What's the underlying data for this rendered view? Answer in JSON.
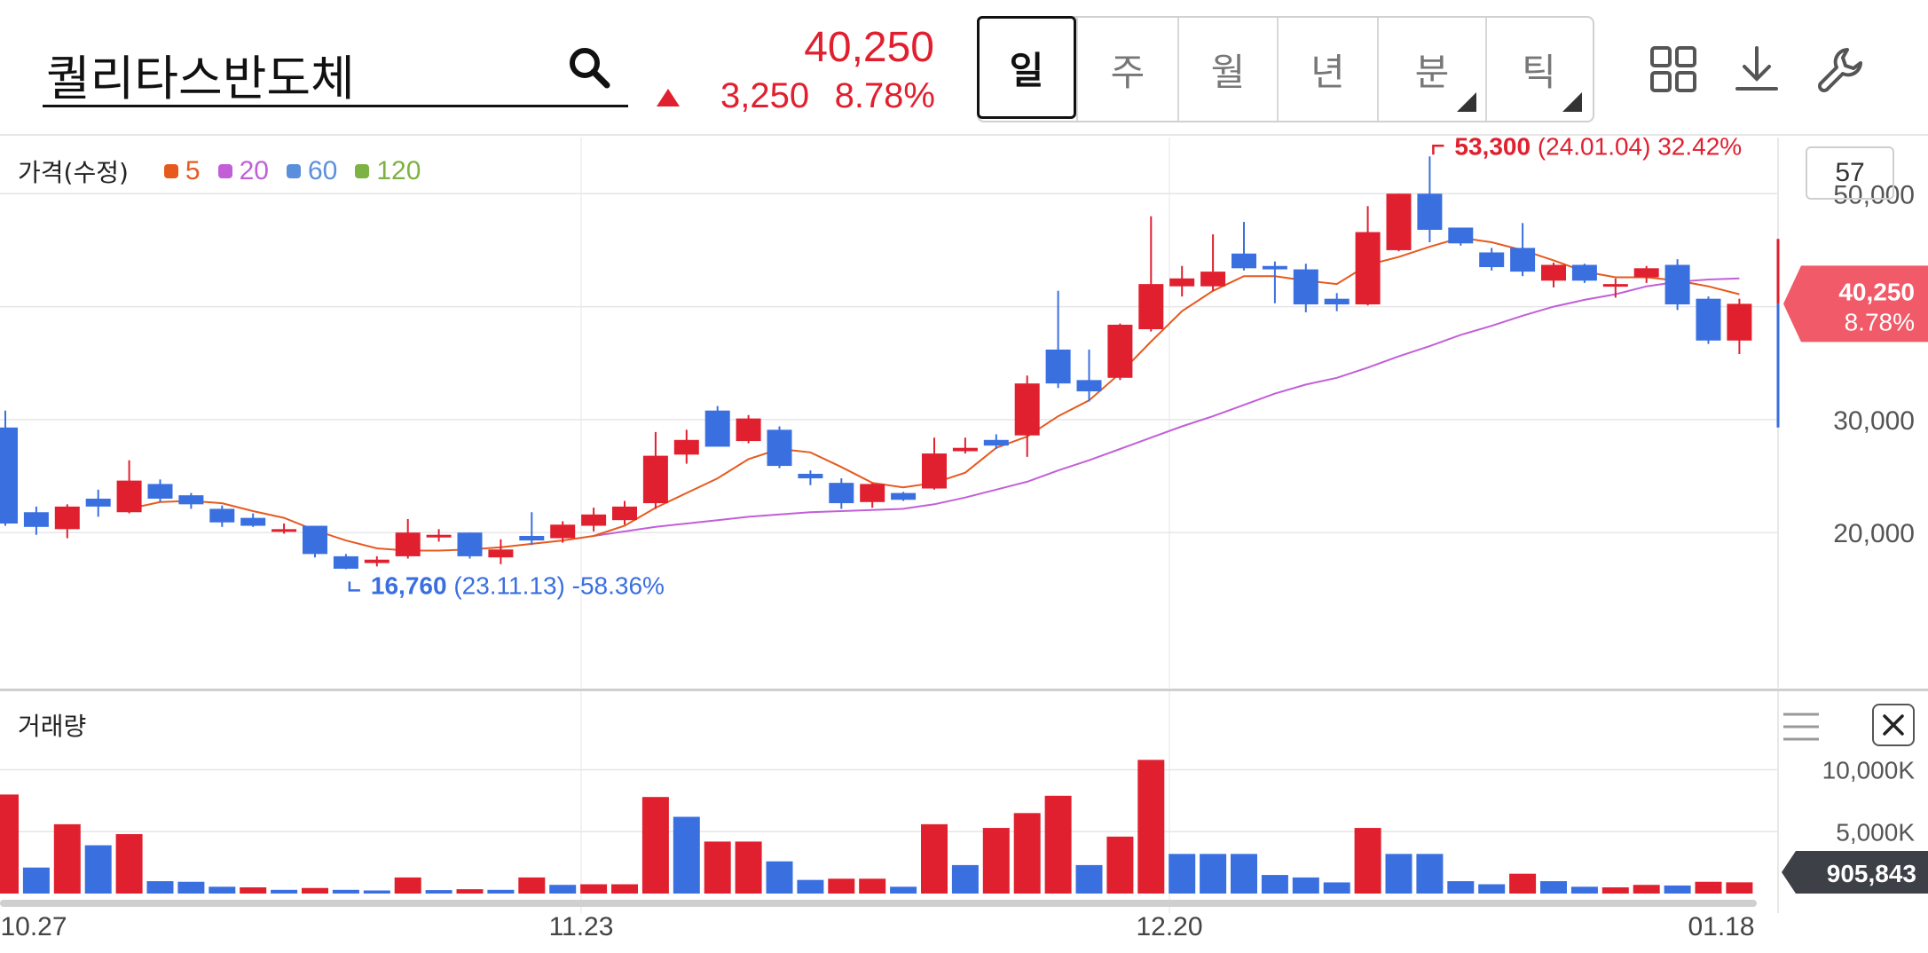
{
  "header": {
    "stock_name": "퀄리타스반도체",
    "price": "40,250",
    "change_abs": "3,250",
    "change_pct": "8.78%",
    "up_color": "#e0202f",
    "down_color": "#3a6fe0"
  },
  "period_tabs": [
    {
      "label": "일",
      "active": true,
      "has_submenu": false
    },
    {
      "label": "주",
      "active": false,
      "has_submenu": false
    },
    {
      "label": "월",
      "active": false,
      "has_submenu": false
    },
    {
      "label": "년",
      "active": false,
      "has_submenu": false
    },
    {
      "label": "분",
      "active": false,
      "has_submenu": true
    },
    {
      "label": "틱",
      "active": false,
      "has_submenu": true
    }
  ],
  "toolbar": {
    "icons": [
      "grid-layout-icon",
      "download-icon",
      "wrench-settings-icon"
    ]
  },
  "price_panel": {
    "legend_title": "가격(수정)",
    "ma_legend": [
      {
        "label": "5",
        "color": "#e65a1e"
      },
      {
        "label": "20",
        "color": "#c25fd8"
      },
      {
        "label": "60",
        "color": "#5b8fdc"
      },
      {
        "label": "120",
        "color": "#7cb342"
      }
    ],
    "visible_count": "57",
    "y_ticks": [
      "50,000",
      "30,000",
      "20,000"
    ],
    "current_price_tag": "40,250",
    "current_pct_tag": "8.78%",
    "high_annotation": {
      "value": "53,300",
      "detail": "(24.01.04) 32.42%"
    },
    "low_annotation": {
      "value": "16,760",
      "detail": "(23.11.13) -58.36%"
    }
  },
  "volume_panel": {
    "title": "거래량",
    "y_ticks": [
      "10,000K",
      "5,000K"
    ],
    "current_volume_tag": "905,843"
  },
  "x_labels": [
    "10.27",
    "11.23",
    "12.20",
    "01.18"
  ],
  "chart_data": [
    {
      "type": "candlestick",
      "title": "가격(수정)",
      "y_axis": {
        "ticks": [
          20000,
          30000,
          40000,
          50000
        ],
        "range": [
          15300,
          56700
        ]
      },
      "candles": [
        {
          "o": 20800,
          "h": 30800,
          "l": 20600,
          "c": 29300,
          "up": false
        },
        {
          "o": 21800,
          "h": 22300,
          "l": 19800,
          "c": 20500,
          "up": false
        },
        {
          "o": 20300,
          "h": 22500,
          "l": 19500,
          "c": 22300,
          "up": true
        },
        {
          "o": 22300,
          "h": 23800,
          "l": 21400,
          "c": 23000,
          "up": false
        },
        {
          "o": 21800,
          "h": 26400,
          "l": 21700,
          "c": 24600,
          "up": true
        },
        {
          "o": 24300,
          "h": 24700,
          "l": 22700,
          "c": 23000,
          "up": false
        },
        {
          "o": 23300,
          "h": 23500,
          "l": 22100,
          "c": 22500,
          "up": false
        },
        {
          "o": 22100,
          "h": 22400,
          "l": 20500,
          "c": 20900,
          "up": false
        },
        {
          "o": 21300,
          "h": 21700,
          "l": 20500,
          "c": 20600,
          "up": false
        },
        {
          "o": 20100,
          "h": 20800,
          "l": 19900,
          "c": 20300,
          "up": true
        },
        {
          "o": 20600,
          "h": 20600,
          "l": 17800,
          "c": 18100,
          "up": false
        },
        {
          "o": 17900,
          "h": 18100,
          "l": 16760,
          "c": 16800,
          "up": false
        },
        {
          "o": 17300,
          "h": 17900,
          "l": 17000,
          "c": 17600,
          "up": true
        },
        {
          "o": 17900,
          "h": 21200,
          "l": 17700,
          "c": 20000,
          "up": true
        },
        {
          "o": 19600,
          "h": 20300,
          "l": 19200,
          "c": 19800,
          "up": true
        },
        {
          "o": 20000,
          "h": 20000,
          "l": 17700,
          "c": 17900,
          "up": false
        },
        {
          "o": 17800,
          "h": 19400,
          "l": 17200,
          "c": 18500,
          "up": true
        },
        {
          "o": 19300,
          "h": 21800,
          "l": 18900,
          "c": 19700,
          "up": false
        },
        {
          "o": 19500,
          "h": 21000,
          "l": 19100,
          "c": 20700,
          "up": true
        },
        {
          "o": 20600,
          "h": 22200,
          "l": 20100,
          "c": 21600,
          "up": true
        },
        {
          "o": 21100,
          "h": 22800,
          "l": 20700,
          "c": 22300,
          "up": true
        },
        {
          "o": 22600,
          "h": 28900,
          "l": 22100,
          "c": 26800,
          "up": true
        },
        {
          "o": 26900,
          "h": 29100,
          "l": 26100,
          "c": 28200,
          "up": true
        },
        {
          "o": 30800,
          "h": 31200,
          "l": 27600,
          "c": 27600,
          "up": false
        },
        {
          "o": 28100,
          "h": 30400,
          "l": 27900,
          "c": 30100,
          "up": true
        },
        {
          "o": 29100,
          "h": 29400,
          "l": 25700,
          "c": 25900,
          "up": false
        },
        {
          "o": 25200,
          "h": 25500,
          "l": 24200,
          "c": 24800,
          "up": false
        },
        {
          "o": 24400,
          "h": 24800,
          "l": 22100,
          "c": 22600,
          "up": false
        },
        {
          "o": 22700,
          "h": 24400,
          "l": 22200,
          "c": 24300,
          "up": true
        },
        {
          "o": 23500,
          "h": 23600,
          "l": 22800,
          "c": 22900,
          "up": false
        },
        {
          "o": 23900,
          "h": 28400,
          "l": 23800,
          "c": 27000,
          "up": true
        },
        {
          "o": 27200,
          "h": 28400,
          "l": 27000,
          "c": 27500,
          "up": true
        },
        {
          "o": 28200,
          "h": 28700,
          "l": 27400,
          "c": 27700,
          "up": false
        },
        {
          "o": 28600,
          "h": 33900,
          "l": 26700,
          "c": 33200,
          "up": true
        },
        {
          "o": 36200,
          "h": 41400,
          "l": 32800,
          "c": 33200,
          "up": false
        },
        {
          "o": 33500,
          "h": 36200,
          "l": 31600,
          "c": 32500,
          "up": false
        },
        {
          "o": 33700,
          "h": 38500,
          "l": 33500,
          "c": 38400,
          "up": true
        },
        {
          "o": 38000,
          "h": 48000,
          "l": 37800,
          "c": 42000,
          "up": true
        },
        {
          "o": 41800,
          "h": 43600,
          "l": 40900,
          "c": 42500,
          "up": true
        },
        {
          "o": 41800,
          "h": 46400,
          "l": 41400,
          "c": 43100,
          "up": true
        },
        {
          "o": 44700,
          "h": 47500,
          "l": 43200,
          "c": 43400,
          "up": false
        },
        {
          "o": 43600,
          "h": 44000,
          "l": 40300,
          "c": 43300,
          "up": false
        },
        {
          "o": 43300,
          "h": 43800,
          "l": 39500,
          "c": 40200,
          "up": false
        },
        {
          "o": 40700,
          "h": 41200,
          "l": 39600,
          "c": 40200,
          "up": false
        },
        {
          "o": 40200,
          "h": 48900,
          "l": 40100,
          "c": 46600,
          "up": true
        },
        {
          "o": 45000,
          "h": 50000,
          "l": 44900,
          "c": 50000,
          "up": true
        },
        {
          "o": 50000,
          "h": 53300,
          "l": 45700,
          "c": 46800,
          "up": false
        },
        {
          "o": 47000,
          "h": 47000,
          "l": 45400,
          "c": 45600,
          "up": false
        },
        {
          "o": 44800,
          "h": 45200,
          "l": 43200,
          "c": 43500,
          "up": false
        },
        {
          "o": 45200,
          "h": 47400,
          "l": 42700,
          "c": 43100,
          "up": false
        },
        {
          "o": 42300,
          "h": 43900,
          "l": 41700,
          "c": 43700,
          "up": true
        },
        {
          "o": 43700,
          "h": 43800,
          "l": 42100,
          "c": 42300,
          "up": false
        },
        {
          "o": 41900,
          "h": 42500,
          "l": 40800,
          "c": 42000,
          "up": true
        },
        {
          "o": 42600,
          "h": 43600,
          "l": 42100,
          "c": 43400,
          "up": true
        },
        {
          "o": 43700,
          "h": 44200,
          "l": 39700,
          "c": 40200,
          "up": false
        },
        {
          "o": 40700,
          "h": 40900,
          "l": 36700,
          "c": 37000,
          "up": false
        },
        {
          "o": 37000,
          "h": 40700,
          "l": 35800,
          "c": 40250,
          "up": true
        }
      ],
      "ma5": [
        null,
        null,
        null,
        null,
        22100,
        22700,
        22800,
        22600,
        21900,
        21300,
        20200,
        19300,
        18600,
        18400,
        18400,
        18500,
        18700,
        19000,
        19300,
        19700,
        20600,
        22200,
        23500,
        24800,
        26500,
        27400,
        27100,
        25800,
        24400,
        24000,
        24400,
        25300,
        27500,
        28500,
        30300,
        31700,
        34100,
        36900,
        39600,
        41400,
        42700,
        42700,
        42300,
        42000,
        43700,
        44400,
        45300,
        46100,
        45700,
        45000,
        44100,
        43100,
        42600,
        42600,
        42300,
        41800,
        41100
      ],
      "ma20": [
        null,
        null,
        null,
        null,
        null,
        null,
        null,
        null,
        null,
        null,
        null,
        null,
        null,
        null,
        null,
        null,
        null,
        null,
        null,
        19700,
        20100,
        20500,
        20800,
        21100,
        21400,
        21600,
        21800,
        21900,
        22000,
        22100,
        22500,
        23100,
        23800,
        24500,
        25500,
        26400,
        27400,
        28400,
        29400,
        30300,
        31300,
        32300,
        33100,
        33700,
        34600,
        35600,
        36500,
        37500,
        38300,
        39200,
        40000,
        40600,
        41100,
        41800,
        42200,
        42400,
        42500
      ]
    },
    {
      "type": "bar",
      "title": "거래량",
      "y_axis": {
        "ticks": [
          5000,
          10000
        ],
        "unit": "K"
      },
      "values": [
        8000,
        2100,
        5600,
        3900,
        4800,
        1000,
        950,
        550,
        500,
        300,
        450,
        300,
        250,
        1300,
        280,
        350,
        300,
        1300,
        700,
        750,
        750,
        7800,
        6200,
        4200,
        4200,
        2600,
        1100,
        1200,
        1200,
        550,
        5600,
        2300,
        5300,
        6500,
        7900,
        2300,
        4600,
        10800,
        3200,
        3200,
        3200,
        1500,
        1300,
        900,
        5300,
        3200,
        3200,
        1000,
        750,
        1600,
        1000,
        550,
        500,
        700,
        650,
        950,
        905.843
      ],
      "up": [
        true,
        false,
        true,
        false,
        true,
        false,
        false,
        false,
        true,
        false,
        true,
        false,
        false,
        true,
        false,
        true,
        false,
        true,
        false,
        true,
        true,
        true,
        false,
        true,
        true,
        false,
        false,
        true,
        true,
        false,
        true,
        false,
        true,
        true,
        true,
        false,
        true,
        true,
        false,
        false,
        false,
        false,
        false,
        false,
        true,
        false,
        false,
        false,
        false,
        true,
        false,
        false,
        true,
        true,
        false,
        true,
        true
      ]
    }
  ]
}
